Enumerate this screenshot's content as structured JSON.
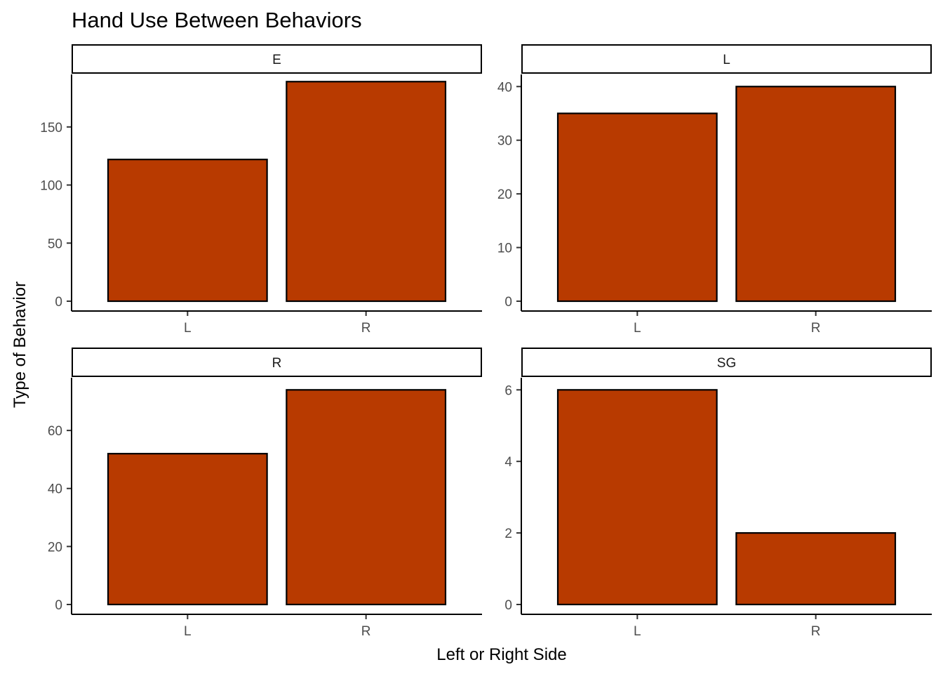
{
  "chart_data": {
    "type": "bar",
    "title": "Hand Use Between Behaviors",
    "xlabel": "Left or Right Side",
    "ylabel": "Type of Behavior",
    "bar_color": "#B83A00",
    "grid": false,
    "facets": [
      {
        "name": "E",
        "categories": [
          "L",
          "R"
        ],
        "values": [
          122,
          189
        ],
        "ylim": [
          0,
          194
        ],
        "yticks": [
          0,
          50,
          100,
          150
        ]
      },
      {
        "name": "L",
        "categories": [
          "L",
          "R"
        ],
        "values": [
          35,
          40
        ],
        "ylim": [
          0,
          42
        ],
        "yticks": [
          0,
          10,
          20,
          30,
          40
        ]
      },
      {
        "name": "R",
        "categories": [
          "L",
          "R"
        ],
        "values": [
          52,
          74
        ],
        "ylim": [
          0,
          77.7
        ],
        "yticks": [
          0,
          20,
          40,
          60
        ]
      },
      {
        "name": "SG",
        "categories": [
          "L",
          "R"
        ],
        "values": [
          6,
          2
        ],
        "ylim": [
          0,
          6.3
        ],
        "yticks": [
          0,
          2,
          4,
          6
        ]
      }
    ]
  }
}
